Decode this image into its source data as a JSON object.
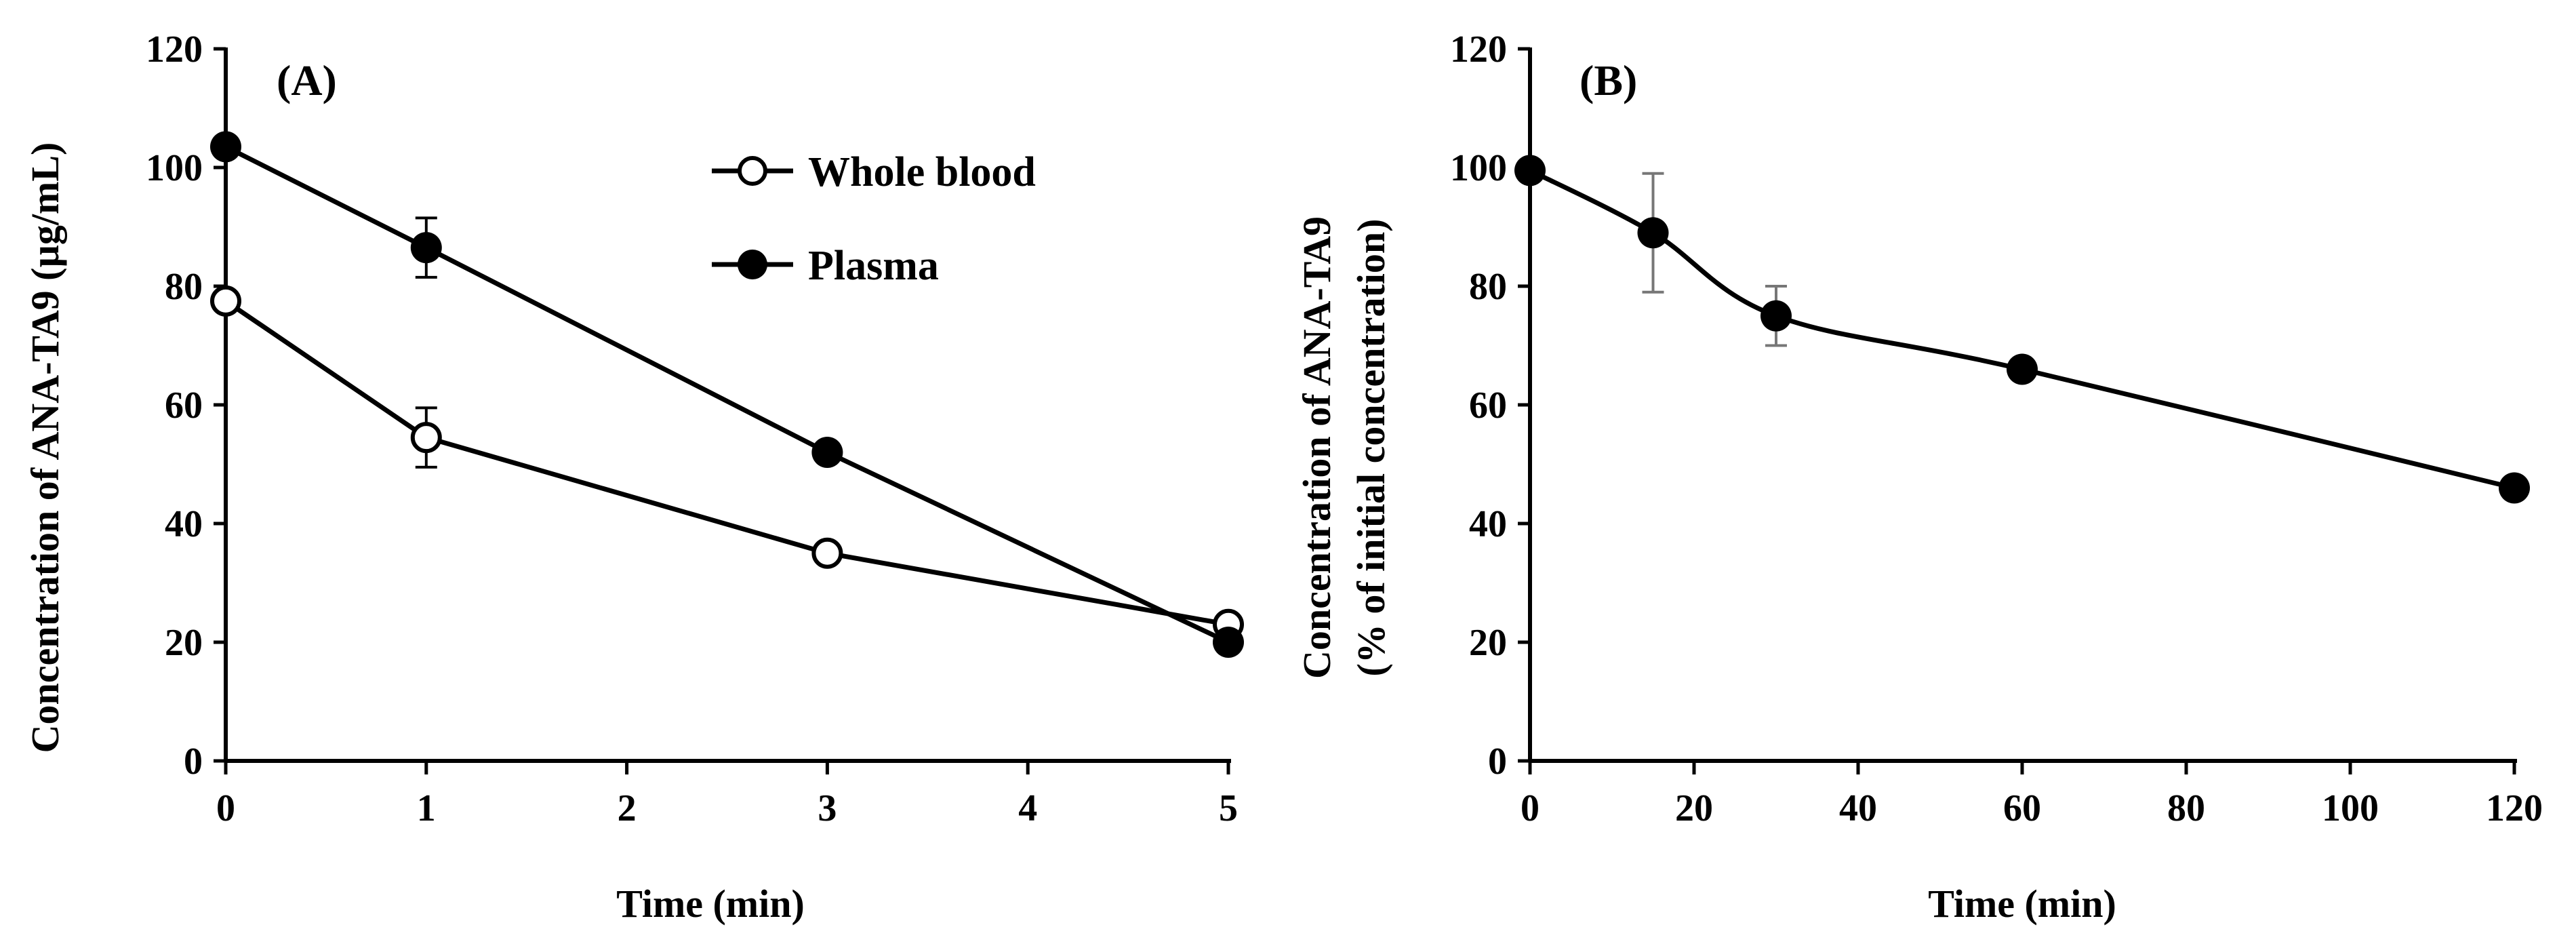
{
  "chart_data": [
    {
      "type": "line",
      "panel_label": "(A)",
      "xlabel": "Time (min)",
      "ylabel": "Concentration of ANA-TA9 (µg/mL)",
      "xlim": [
        0,
        5
      ],
      "ylim": [
        0,
        120
      ],
      "x_ticks": [
        0,
        1,
        2,
        3,
        4,
        5
      ],
      "y_ticks": [
        0,
        20,
        40,
        60,
        80,
        100,
        120
      ],
      "grid": false,
      "legend_position": "top-center",
      "series": [
        {
          "name": "Whole blood",
          "marker": "open-circle",
          "x": [
            0,
            1,
            3,
            5
          ],
          "values": [
            77.5,
            54.5,
            35,
            23
          ],
          "errors": [
            0,
            5,
            0,
            0
          ]
        },
        {
          "name": "Plasma",
          "marker": "filled-circle",
          "x": [
            0,
            1,
            3,
            5
          ],
          "values": [
            103.5,
            86.5,
            52,
            20
          ],
          "errors": [
            0,
            5,
            0,
            0
          ]
        }
      ]
    },
    {
      "type": "line",
      "panel_label": "(B)",
      "xlabel": "Time (min)",
      "ylabel_lines": [
        "Concentration of ANA-TA9",
        "(% of initial concentration)"
      ],
      "xlim": [
        0,
        120
      ],
      "ylim": [
        0,
        120
      ],
      "x_ticks": [
        0,
        20,
        40,
        60,
        80,
        100,
        120
      ],
      "y_ticks": [
        0,
        20,
        40,
        60,
        80,
        100,
        120
      ],
      "grid": false,
      "series": [
        {
          "name": "ANA-TA9",
          "marker": "filled-circle",
          "x": [
            0,
            15,
            30,
            60,
            120
          ],
          "values": [
            99.5,
            89,
            75,
            66,
            46
          ],
          "errors": [
            0,
            10,
            5,
            0,
            0
          ]
        }
      ]
    }
  ]
}
